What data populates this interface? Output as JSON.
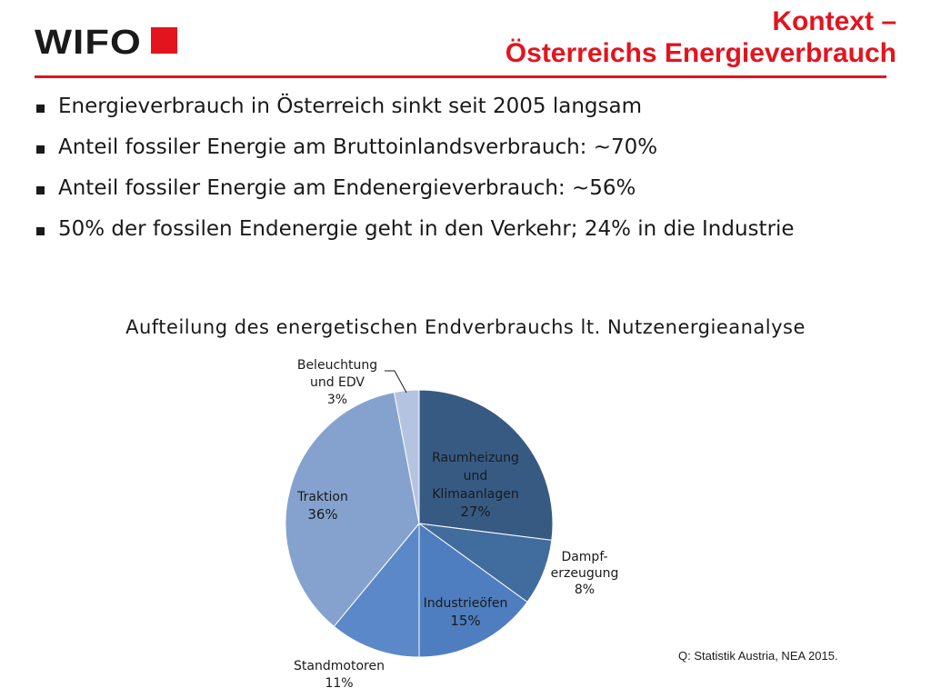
{
  "logo": {
    "text": "WIFO"
  },
  "header": {
    "title_line1": "Kontext –",
    "title_line2": "Österreichs Energieverbrauch",
    "accent_color": "#e3141e"
  },
  "bullets": [
    "Energieverbrauch in Österreich sinkt seit 2005 langsam",
    "Anteil fossiler Energie am Bruttoinlandsverbrauch: ~70%",
    "Anteil fossiler Energie am Endenergieverbrauch: ~56%",
    "50% der fossilen Endenergie geht in den Verkehr; 24% in die Industrie"
  ],
  "chart_data": {
    "type": "pie",
    "title": "Aufteilung des energetischen Endverbrauchs lt. Nutzenergieanalyse",
    "start_angle_deg": 0,
    "direction": "clockwise",
    "slices": [
      {
        "label_lines": [
          "Raumheizung",
          "und",
          "Klimaanlagen"
        ],
        "value_label": "27%",
        "value": 27,
        "color": "#375a83",
        "label_inside": true
      },
      {
        "label_lines": [
          "Dampf-",
          "erzeugung"
        ],
        "value_label": "8%",
        "value": 8,
        "color": "#416c9e",
        "label_inside": false
      },
      {
        "label_lines": [
          "Industrieöfen"
        ],
        "value_label": "15%",
        "value": 15,
        "color": "#4e7ec0",
        "label_inside": true
      },
      {
        "label_lines": [
          "Standmotoren"
        ],
        "value_label": "11%",
        "value": 11,
        "color": "#5b88c9",
        "label_inside": false
      },
      {
        "label_lines": [
          "Traktion"
        ],
        "value_label": "36%",
        "value": 36,
        "color": "#85a2cf",
        "label_inside": true
      },
      {
        "label_lines": [
          "Beleuchtung",
          "und EDV"
        ],
        "value_label": "3%",
        "value": 3,
        "color": "#b4c4e0",
        "label_inside": false
      }
    ]
  },
  "source": "Q: Statistik  Austria, NEA 2015."
}
